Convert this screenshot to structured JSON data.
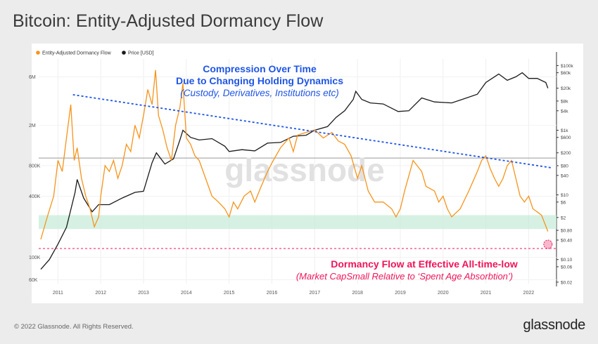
{
  "page": {
    "title": "Bitcoin: Entity-Adjusted Dormancy Flow",
    "copyright": "© 2022 Glassnode. All Rights Reserved.",
    "brand": "glassnode",
    "watermark": "glassnode"
  },
  "colors": {
    "dormancy": "#f7931a",
    "price": "#1a1a1a",
    "trend": "#1f55e6",
    "annotation_blue": "#1f55e6",
    "annotation_pink": "#f0145a",
    "band": "#c8ecd9"
  },
  "annotations": {
    "top_line1": "Compression Over Time",
    "top_line2": "Due to Changing Holding Dynamics",
    "top_line3": "(Custody, Derivatives, Institutions etc)",
    "bottom_line1": "Dormancy Flow at Effective All-time-low",
    "bottom_line2": "(Market CapSmall Relative to ‘Spent Age Absorbtion’)"
  },
  "chart_data": {
    "type": "line",
    "title": "Bitcoin: Entity-Adjusted Dormancy Flow",
    "legend_position": "top-left",
    "grid": true,
    "x_ticks": [
      "2011",
      "2012",
      "2013",
      "2014",
      "2015",
      "2016",
      "2017",
      "2018",
      "2019",
      "2020",
      "2021",
      "2022"
    ],
    "xlim": [
      2010.55,
      2022.65
    ],
    "left_axis": {
      "scale": "log",
      "ticks": [
        "6M",
        "2M",
        "800K",
        "400K",
        "100K",
        "60K"
      ],
      "tick_values": [
        6000000,
        2000000,
        800000,
        400000,
        100000,
        60000
      ],
      "ylim": [
        55000,
        9000000
      ]
    },
    "right_axis": {
      "scale": "log",
      "ticks": [
        "$100k",
        "$60k",
        "$20k",
        "$8k",
        "$4k",
        "$1k",
        "$600",
        "$200",
        "$80",
        "$40",
        "$10",
        "$6",
        "$2",
        "$0.80",
        "$0.40",
        "$0.10",
        "$0.06",
        "$0.02"
      ],
      "tick_values": [
        100000,
        60000,
        20000,
        8000,
        4000,
        1000,
        600,
        200,
        80,
        40,
        10,
        6,
        2,
        0.8,
        0.4,
        0.1,
        0.06,
        0.02
      ],
      "ylim": [
        0.018,
        160000
      ]
    },
    "series": [
      {
        "name": "Entity-Adjusted Dormancy Flow",
        "axis": "left",
        "x": [
          2010.6,
          2010.75,
          2010.9,
          2011.0,
          2011.1,
          2011.2,
          2011.3,
          2011.38,
          2011.45,
          2011.55,
          2011.65,
          2011.75,
          2011.85,
          2011.95,
          2012.0,
          2012.1,
          2012.2,
          2012.3,
          2012.4,
          2012.5,
          2012.6,
          2012.7,
          2012.8,
          2012.9,
          2013.0,
          2013.1,
          2013.2,
          2013.28,
          2013.35,
          2013.45,
          2013.55,
          2013.65,
          2013.75,
          2013.85,
          2013.92,
          2014.0,
          2014.1,
          2014.2,
          2014.3,
          2014.45,
          2014.6,
          2014.75,
          2014.9,
          2015.0,
          2015.1,
          2015.2,
          2015.35,
          2015.5,
          2015.6,
          2015.75,
          2015.9,
          2016.0,
          2016.2,
          2016.4,
          2016.5,
          2016.6,
          2016.8,
          2017.0,
          2017.2,
          2017.4,
          2017.55,
          2017.7,
          2017.85,
          2018.0,
          2018.1,
          2018.25,
          2018.4,
          2018.6,
          2018.8,
          2018.9,
          2019.0,
          2019.1,
          2019.3,
          2019.5,
          2019.6,
          2019.8,
          2019.9,
          2020.0,
          2020.1,
          2020.2,
          2020.4,
          2020.6,
          2020.8,
          2020.9,
          2021.0,
          2021.1,
          2021.2,
          2021.3,
          2021.4,
          2021.5,
          2021.6,
          2021.7,
          2021.8,
          2021.9,
          2022.0,
          2022.1,
          2022.2,
          2022.3,
          2022.45
        ],
        "values": [
          150000,
          250000,
          400000,
          900000,
          700000,
          1500000,
          3200000,
          900000,
          1200000,
          600000,
          400000,
          300000,
          200000,
          250000,
          400000,
          800000,
          700000,
          900000,
          600000,
          800000,
          1300000,
          1100000,
          2000000,
          1500000,
          2500000,
          4500000,
          3200000,
          7000000,
          2500000,
          1800000,
          1200000,
          900000,
          2000000,
          3000000,
          5200000,
          1500000,
          1300000,
          1000000,
          900000,
          600000,
          400000,
          350000,
          300000,
          250000,
          350000,
          300000,
          400000,
          450000,
          350000,
          500000,
          700000,
          850000,
          1200000,
          1500000,
          1100000,
          1600000,
          1700000,
          1800000,
          1500000,
          1700000,
          1400000,
          1300000,
          1000000,
          600000,
          800000,
          450000,
          350000,
          350000,
          300000,
          250000,
          300000,
          450000,
          900000,
          700000,
          500000,
          450000,
          350000,
          400000,
          300000,
          250000,
          300000,
          450000,
          700000,
          900000,
          1000000,
          750000,
          600000,
          500000,
          600000,
          800000,
          900000,
          600000,
          400000,
          350000,
          400000,
          300000,
          280000,
          260000,
          180000
        ]
      },
      {
        "name": "Price [USD]",
        "axis": "right",
        "x": [
          2010.6,
          2010.8,
          2011.0,
          2011.2,
          2011.4,
          2011.45,
          2011.6,
          2011.8,
          2011.95,
          2012.2,
          2012.5,
          2012.8,
          2013.0,
          2013.2,
          2013.3,
          2013.5,
          2013.7,
          2013.85,
          2013.92,
          2014.1,
          2014.3,
          2014.6,
          2014.9,
          2015.0,
          2015.3,
          2015.6,
          2015.9,
          2016.2,
          2016.5,
          2016.8,
          2017.0,
          2017.3,
          2017.5,
          2017.7,
          2017.9,
          2017.96,
          2018.1,
          2018.3,
          2018.6,
          2018.95,
          2019.2,
          2019.5,
          2019.8,
          2020.2,
          2020.5,
          2020.8,
          2021.0,
          2021.3,
          2021.5,
          2021.7,
          2021.85,
          2022.0,
          2022.2,
          2022.4,
          2022.45
        ],
        "values": [
          0.05,
          0.1,
          0.3,
          1,
          12,
          30,
          8,
          3,
          5,
          5,
          8,
          12,
          13,
          100,
          200,
          90,
          130,
          500,
          1000,
          600,
          500,
          550,
          320,
          220,
          250,
          230,
          400,
          420,
          650,
          700,
          1000,
          1300,
          2500,
          4000,
          9000,
          16000,
          9000,
          7000,
          6500,
          3800,
          4000,
          10000,
          7500,
          7000,
          9500,
          13000,
          30000,
          55000,
          35000,
          45000,
          60000,
          40000,
          40000,
          30000,
          20000
        ]
      }
    ],
    "trendline": {
      "from": [
        2011.35,
        4000000
      ],
      "to": [
        2022.55,
        760000
      ]
    },
    "reference_line": {
      "axis": "left",
      "value": 122000
    },
    "band": {
      "axis": "left",
      "from": 190000,
      "to": 260000
    },
    "price_reference_line": {
      "axis": "left",
      "value": 950000
    }
  }
}
